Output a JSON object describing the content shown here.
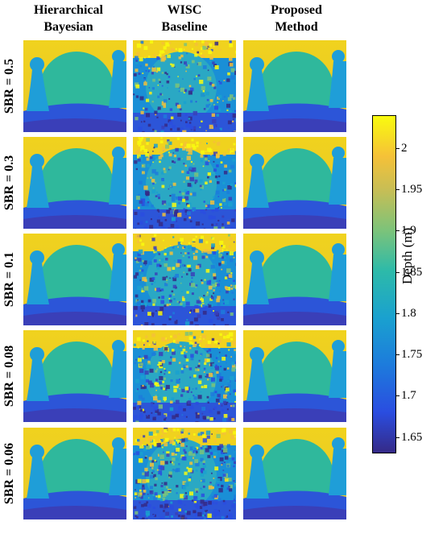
{
  "chart_data": {
    "type": "heatmap",
    "column_titles": [
      [
        "Hierarchical",
        "Bayesian"
      ],
      [
        "WISC",
        "Baseline"
      ],
      [
        "Proposed",
        "Method"
      ]
    ],
    "row_labels": [
      "SBR = 0.5",
      "SBR = 0.3",
      "SBR = 0.1",
      "SBR = 0.08",
      "SBR = 0.06"
    ],
    "colorbar": {
      "label": "Depth (m)",
      "range": [
        1.63,
        2.04
      ],
      "ticks": [
        1.65,
        1.7,
        1.75,
        1.8,
        1.85,
        1.9,
        1.95,
        2
      ],
      "tick_labels": [
        "1.65",
        "1.7",
        "1.75",
        "1.8",
        "1.85",
        "1.9",
        "1.95",
        "2"
      ],
      "colormap": "parula"
    },
    "colors": {
      "background_yellow": "#f0d21e",
      "sphere_green": "#2fb89c",
      "pin_blue": "#1f9ed8",
      "floor_blue": "#2c55d8",
      "floor_dark": "#3a3fb8"
    }
  }
}
